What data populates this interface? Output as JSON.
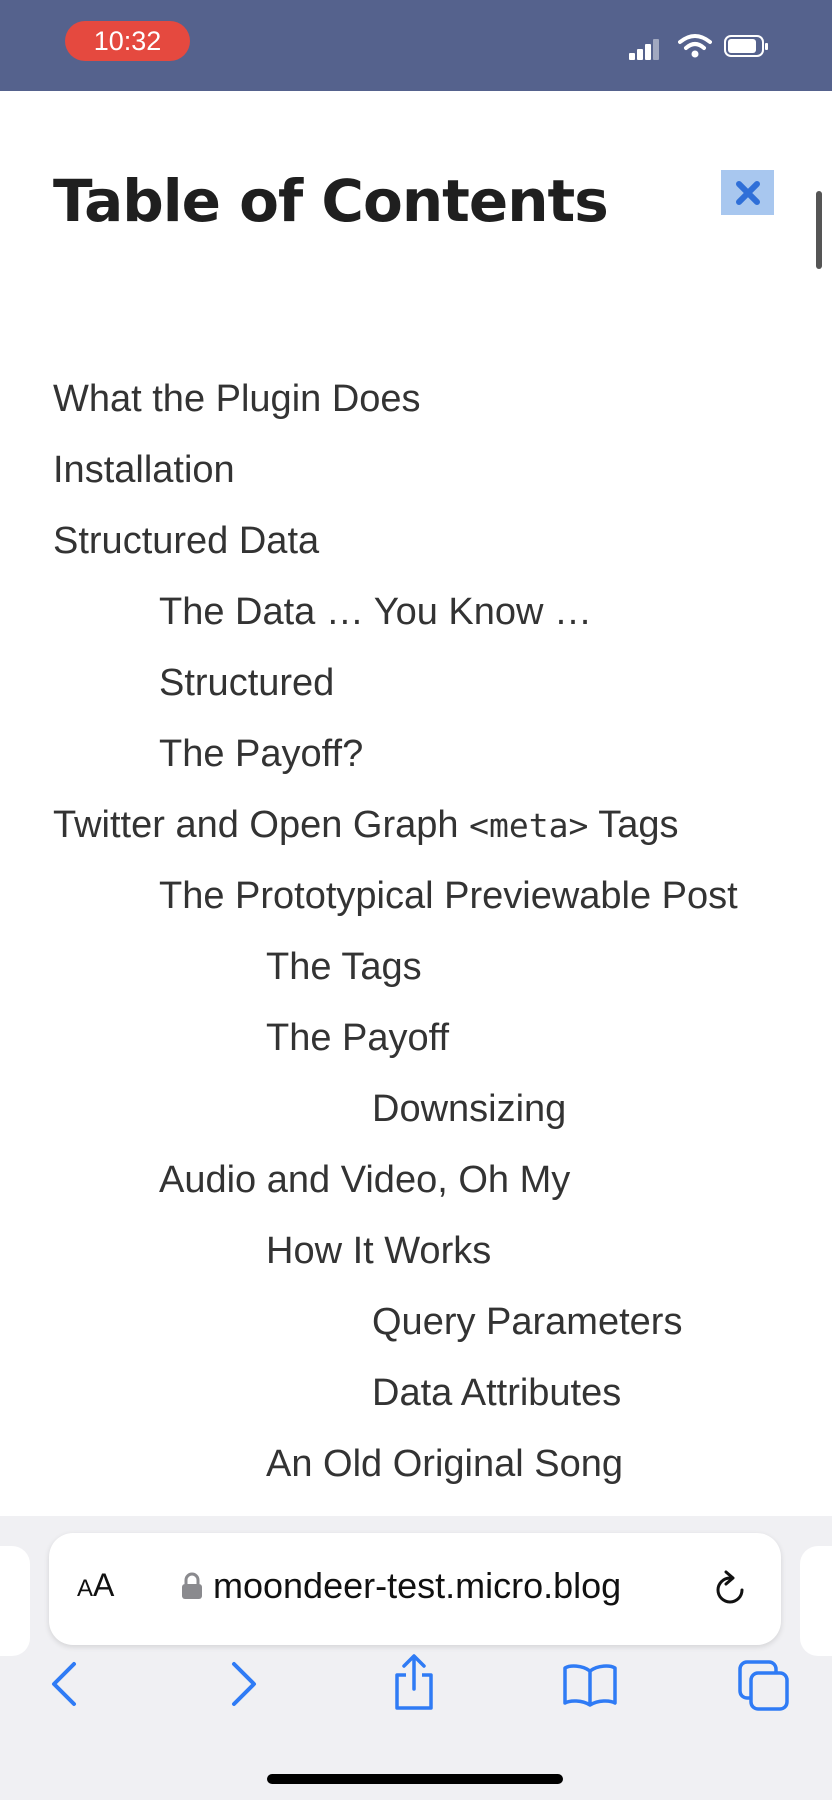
{
  "status_bar": {
    "time": "10:32"
  },
  "page": {
    "title": "Table of Contents"
  },
  "toc": {
    "items": [
      {
        "label": "What the Plugin Does",
        "level": 1
      },
      {
        "label": "Installation",
        "level": 1
      },
      {
        "label": "Structured Data",
        "level": 1
      },
      {
        "label": "The Data … You Know …",
        "level": 2
      },
      {
        "label": "Structured",
        "level": 2
      },
      {
        "label": "The Payoff?",
        "level": 2
      },
      {
        "label_before": "Twitter and Open Graph ",
        "label_code": "<meta>",
        "label_after": " Tags",
        "level": 1
      },
      {
        "label": "The Prototypical Previewable Post",
        "level": 2
      },
      {
        "label": "The Tags",
        "level": 3
      },
      {
        "label": "The Payoff",
        "level": 3
      },
      {
        "label": "Downsizing",
        "level": 4
      },
      {
        "label": "Audio and Video, Oh My",
        "level": 2
      },
      {
        "label": "How It Works",
        "level": 3
      },
      {
        "label": "Query Parameters",
        "level": 4
      },
      {
        "label": "Data Attributes",
        "level": 4
      },
      {
        "label": "An Old Original Song",
        "level": 3
      }
    ]
  },
  "browser": {
    "aa_small": "A",
    "aa_large": "A",
    "url": "moondeer-test.micro.blog"
  },
  "icons": {
    "close": "close-icon",
    "lock": "lock-icon",
    "reload": "reload-icon",
    "back": "chevron-left-icon",
    "forward": "chevron-right-icon",
    "share": "share-icon",
    "bookmarks": "book-icon",
    "tabs": "tabs-icon"
  },
  "colors": {
    "status_bar": "#55628d",
    "time_pill": "#e5493f",
    "close_button": "#a8c7ef",
    "close_glyph": "#2f6fd8",
    "toolbar_icon": "#2f7bf5",
    "text": "#333333"
  }
}
